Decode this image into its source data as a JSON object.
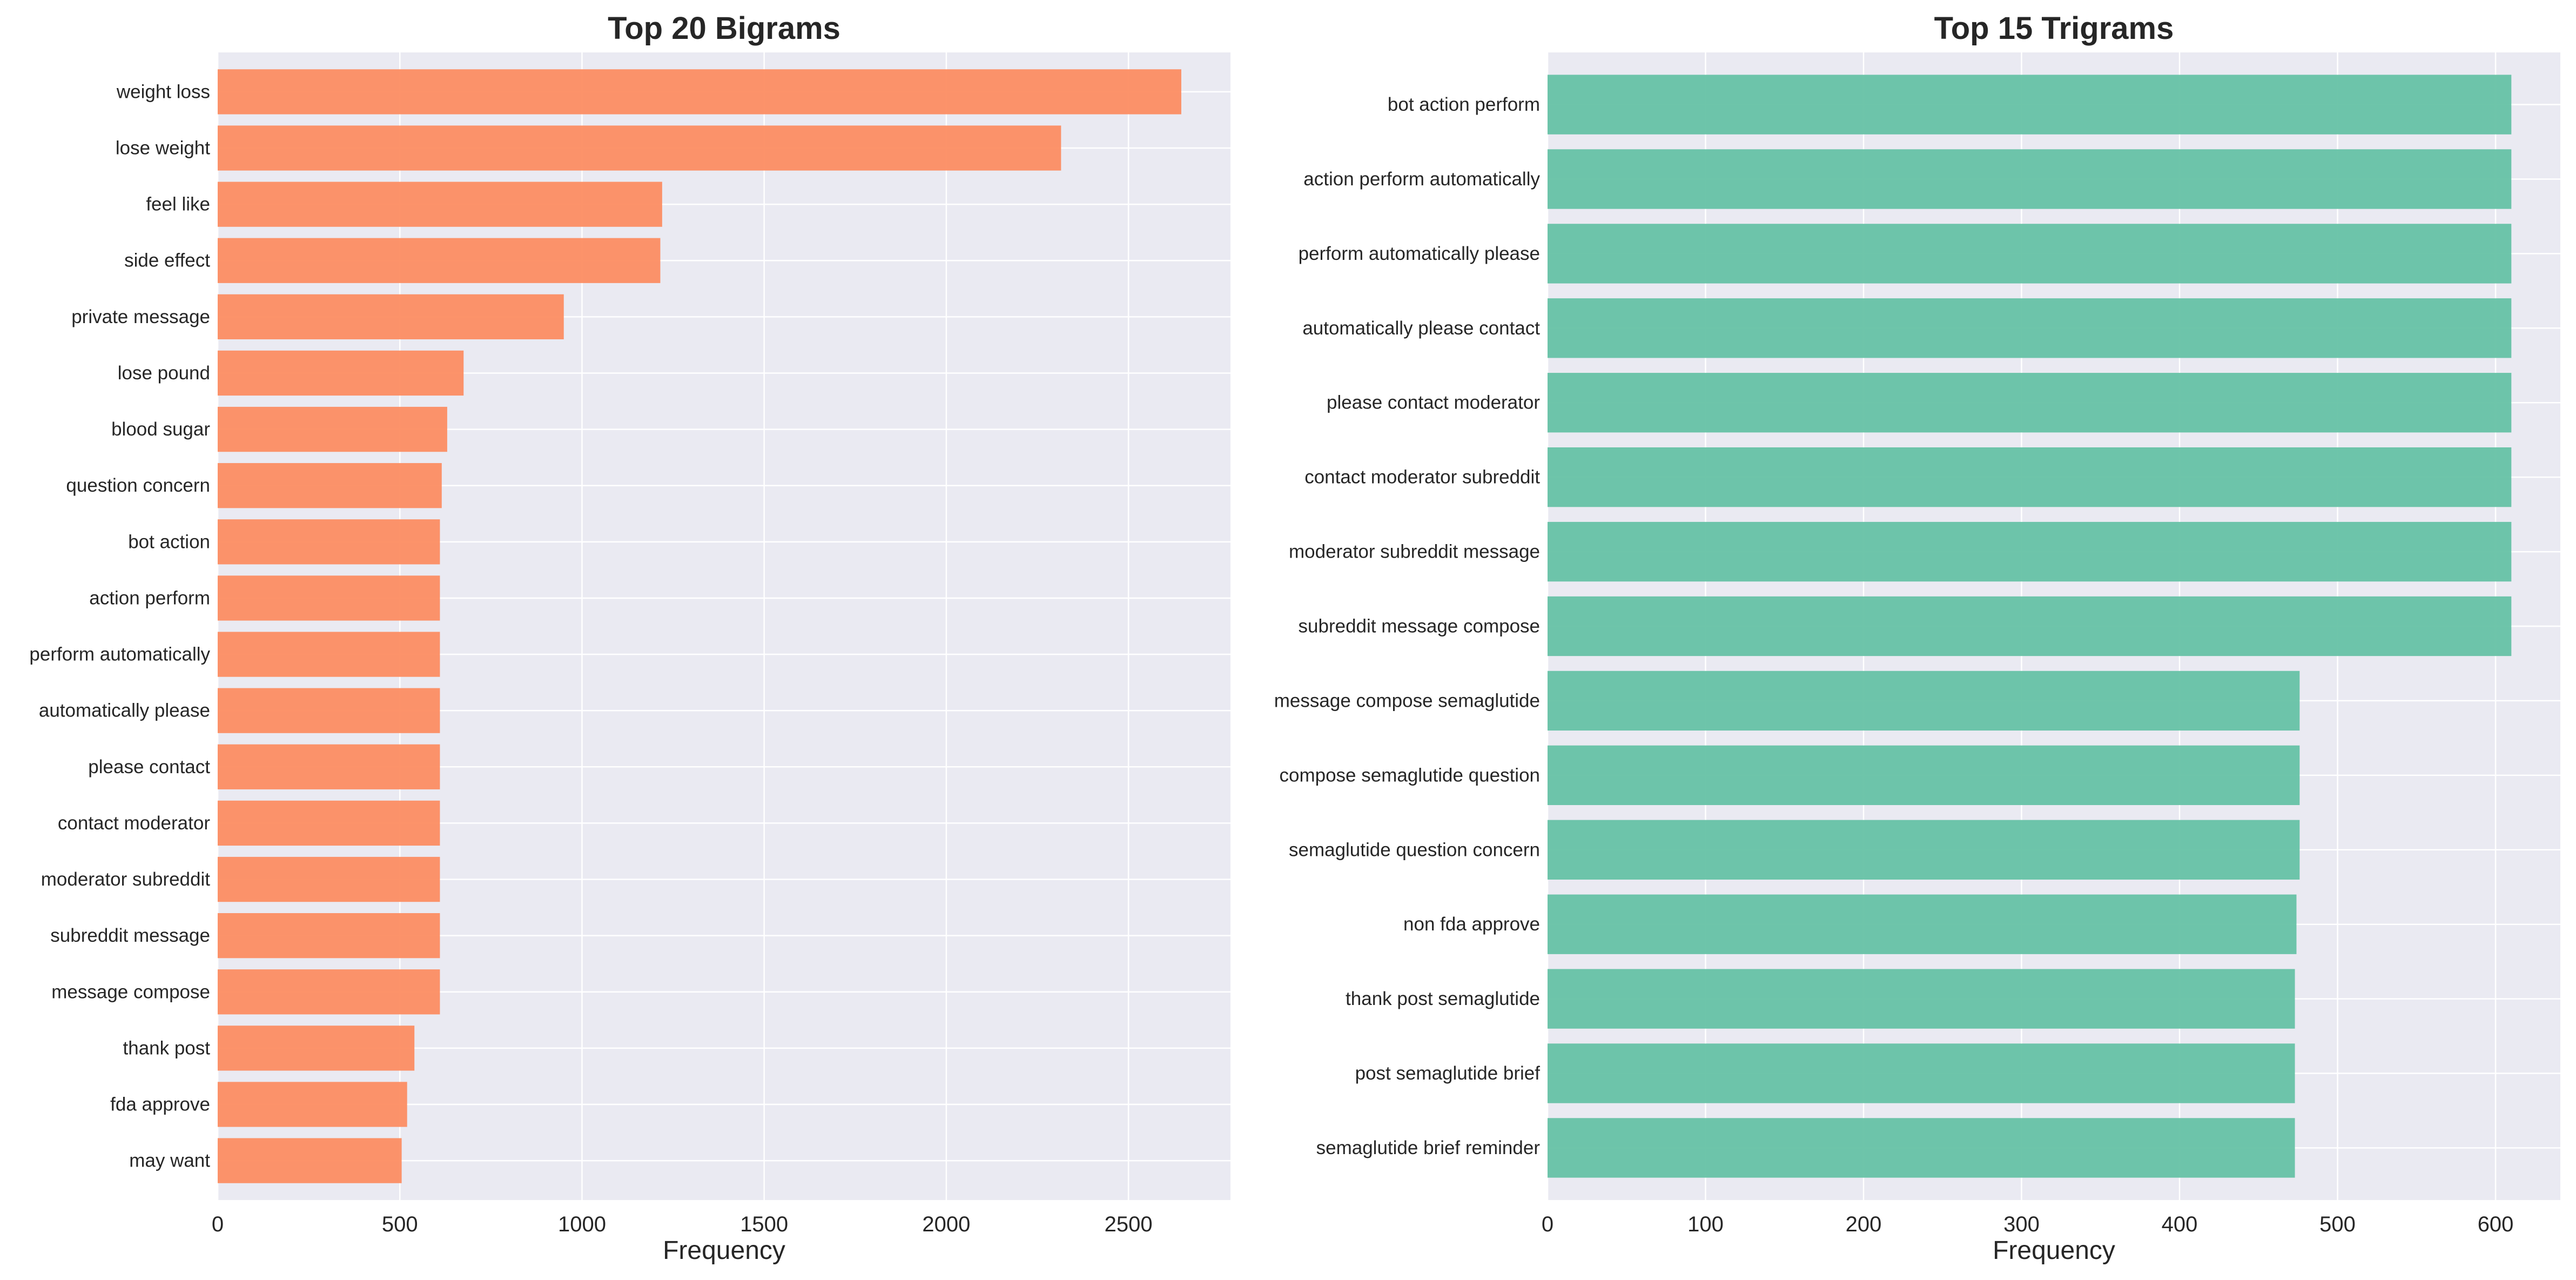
{
  "chart_data": [
    {
      "type": "bar",
      "orientation": "horizontal",
      "title": "Top 20 Bigrams",
      "xlabel": "Frequency",
      "ylabel": "",
      "xlim": [
        0,
        2780
      ],
      "xticks": [
        0,
        500,
        1000,
        1500,
        2000,
        2500
      ],
      "grid": true,
      "color": "#FC8D62",
      "categories": [
        "weight loss",
        "lose weight",
        "feel like",
        "side effect",
        "private message",
        "lose pound",
        "blood sugar",
        "question concern",
        "bot action",
        "action perform",
        "perform automatically",
        "automatically please",
        "please contact",
        "contact moderator",
        "moderator subreddit",
        "subreddit message",
        "message compose",
        "thank post",
        "fda approve",
        "may want"
      ],
      "values": [
        2645,
        2315,
        1220,
        1215,
        950,
        675,
        630,
        615,
        610,
        610,
        610,
        610,
        610,
        610,
        610,
        610,
        610,
        540,
        520,
        505
      ]
    },
    {
      "type": "bar",
      "orientation": "horizontal",
      "title": "Top 15 Trigrams",
      "xlabel": "Frequency",
      "ylabel": "",
      "xlim": [
        0,
        641
      ],
      "xticks": [
        0,
        100,
        200,
        300,
        400,
        500,
        600
      ],
      "grid": true,
      "color": "#66C2A5",
      "categories": [
        "bot action perform",
        "action perform automatically",
        "perform automatically please",
        "automatically please contact",
        "please contact moderator",
        "contact moderator subreddit",
        "moderator subreddit message",
        "subreddit message compose",
        "message compose semaglutide",
        "compose semaglutide question",
        "semaglutide question concern",
        "non fda approve",
        "thank post semaglutide",
        "post semaglutide brief",
        "semaglutide brief reminder"
      ],
      "values": [
        610,
        610,
        610,
        610,
        610,
        610,
        610,
        610,
        476,
        476,
        476,
        474,
        473,
        473,
        473
      ]
    }
  ]
}
